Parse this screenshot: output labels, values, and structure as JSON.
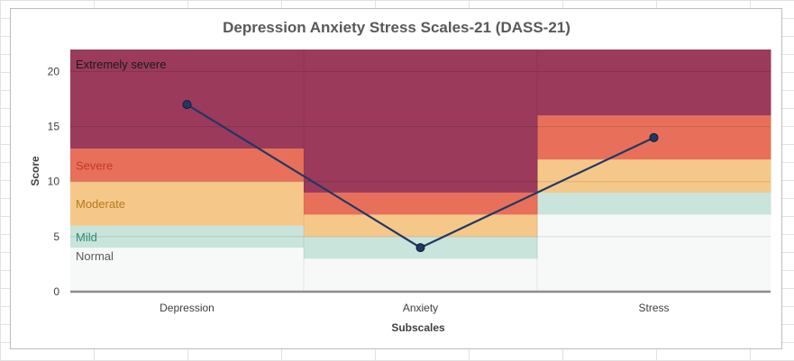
{
  "chart_data": {
    "type": "line",
    "title": "Depression Anxiety Stress Scales-21 (DASS-21)",
    "xlabel": "Subscales",
    "ylabel": "Score",
    "ylim": [
      0,
      22
    ],
    "yticks": [
      0,
      5,
      10,
      15,
      20
    ],
    "categories": [
      "Depression",
      "Anxiety",
      "Stress"
    ],
    "series": [
      {
        "name": "Score",
        "values": [
          17,
          4,
          14
        ],
        "color": "#1f3864"
      }
    ],
    "severity_bands": [
      {
        "name": "Normal",
        "color": "#f7f9f8",
        "label_color": "#595959",
        "ranges": [
          [
            0,
            4
          ],
          [
            0,
            3
          ],
          [
            0,
            7
          ]
        ]
      },
      {
        "name": "Mild",
        "color": "#c9e4da",
        "label_color": "#2e8b74",
        "ranges": [
          [
            4,
            6
          ],
          [
            3,
            5
          ],
          [
            7,
            9
          ]
        ]
      },
      {
        "name": "Moderate",
        "color": "#f5c88a",
        "label_color": "#b7791f",
        "ranges": [
          [
            6,
            10
          ],
          [
            5,
            7
          ],
          [
            9,
            12
          ]
        ]
      },
      {
        "name": "Severe",
        "color": "#e8705a",
        "label_color": "#c0392b",
        "ranges": [
          [
            10,
            13
          ],
          [
            7,
            9
          ],
          [
            12,
            16
          ]
        ]
      },
      {
        "name": "Extremely severe",
        "color": "#9b3a5a",
        "label_color": "#1a1a1a",
        "ranges": [
          [
            13,
            22
          ],
          [
            9,
            22
          ],
          [
            16,
            22
          ]
        ]
      }
    ],
    "grid": true,
    "legend": "none"
  }
}
